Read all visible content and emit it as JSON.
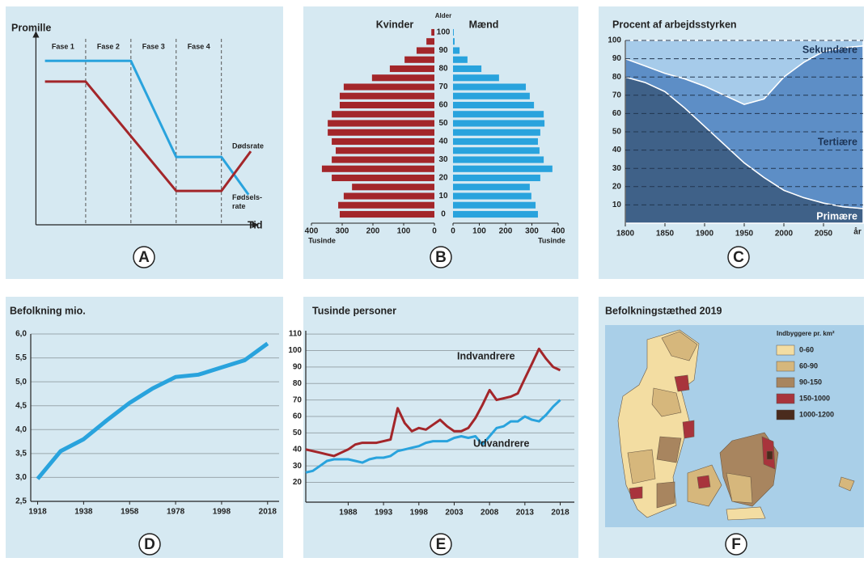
{
  "chart_data": [
    {
      "type": "line",
      "label": "A",
      "ylabel": "Promille",
      "xlabel": "Tid",
      "phases": [
        "Fase 1",
        "Fase 2",
        "Fase 3",
        "Fase 4"
      ],
      "xlim": [
        -0.1,
        4.9
      ],
      "ylim": [
        0,
        10
      ],
      "series": [
        {
          "name": "Fødsels-\nrate",
          "color": "#29a3dd",
          "x": [
            0.1,
            2,
            3,
            4,
            4.6
          ],
          "values": [
            8.7,
            8.7,
            3.6,
            3.6,
            1.6
          ]
        },
        {
          "name": "Dødsrate",
          "color": "#a3262a",
          "x": [
            0.1,
            1,
            3,
            4,
            4.65
          ],
          "values": [
            7.6,
            7.6,
            1.8,
            1.8,
            3.9
          ]
        }
      ]
    },
    {
      "type": "pyramid",
      "label": "B",
      "ylabel": "Alder",
      "xlabel": "Tusinde",
      "categories": [
        0,
        null,
        10,
        null,
        20,
        null,
        30,
        null,
        40,
        null,
        50,
        null,
        60,
        null,
        70,
        null,
        80,
        null,
        90,
        null,
        100
      ],
      "xlim": [
        0,
        400
      ],
      "xticks": [
        0,
        100,
        200,
        300,
        400
      ],
      "series": [
        {
          "name": "Kvinder",
          "color": "#a3262a",
          "values": [
            308,
            313,
            295,
            268,
            334,
            366,
            334,
            321,
            334,
            347,
            347,
            334,
            308,
            308,
            295,
            203,
            145,
            97,
            58,
            26,
            10
          ]
        },
        {
          "name": "Mænd",
          "color": "#29a3dd",
          "values": [
            323,
            314,
            298,
            292,
            332,
            378,
            345,
            329,
            323,
            332,
            348,
            345,
            308,
            292,
            277,
            175,
            108,
            55,
            25,
            6,
            3
          ]
        }
      ]
    },
    {
      "type": "area",
      "label": "C",
      "title": "Procent af arbejdsstyrken",
      "xlabel": "år",
      "x": [
        1800,
        1825,
        1850,
        1875,
        1900,
        1925,
        1950,
        1975,
        2000,
        2025,
        2050,
        2075,
        2100
      ],
      "xlim": [
        1800,
        2100
      ],
      "ylim": [
        0,
        100
      ],
      "xticks": [
        1800,
        1850,
        1900,
        1950,
        2000,
        2050
      ],
      "yticks": [
        10,
        20,
        30,
        40,
        50,
        60,
        70,
        80,
        90,
        100
      ],
      "grid": true,
      "series": [
        {
          "name": "Primære",
          "color": "#3f6188",
          "values": [
            80,
            77,
            72,
            63,
            53,
            43,
            33,
            25,
            18,
            14,
            11,
            9,
            8
          ]
        },
        {
          "name": "Tertiære",
          "color": "#5d8ec6",
          "values": [
            10,
            9,
            10,
            16,
            22,
            27,
            32,
            43,
            62,
            74,
            83,
            87,
            89
          ]
        },
        {
          "name": "Sekundære",
          "color": "#a6cbea",
          "values": [
            10,
            14,
            18,
            21,
            25,
            30,
            35,
            32,
            20,
            12,
            6,
            4,
            3
          ]
        }
      ]
    },
    {
      "type": "line",
      "label": "D",
      "title": "Befolkning mio.",
      "x": [
        1918,
        1928,
        1938,
        1948,
        1958,
        1968,
        1978,
        1988,
        1998,
        2008,
        2018
      ],
      "values": [
        2.97,
        3.55,
        3.8,
        4.19,
        4.56,
        4.86,
        5.1,
        5.15,
        5.3,
        5.45,
        5.8
      ],
      "color": "#29a3dd",
      "xlim": [
        1915,
        2023
      ],
      "ylim": [
        2.5,
        6.0
      ],
      "xticks": [
        1918,
        1938,
        1958,
        1978,
        1998,
        2018
      ],
      "yticks": [
        {
          "value": 2.5,
          "label": "2,5"
        },
        {
          "value": 3.0,
          "label": "3,0"
        },
        {
          "value": 3.5,
          "label": "3,5"
        },
        {
          "value": 4.0,
          "label": "4,0"
        },
        {
          "value": 4.5,
          "label": "4,5"
        },
        {
          "value": 5.0,
          "label": "5,0"
        },
        {
          "value": 5.5,
          "label": "5,5"
        },
        {
          "value": 6.0,
          "label": "6,0"
        }
      ],
      "grid": true
    },
    {
      "type": "line",
      "label": "E",
      "title": "Tusinde personer",
      "x": [
        1982,
        1983,
        1984,
        1985,
        1986,
        1987,
        1988,
        1989,
        1990,
        1991,
        1992,
        1993,
        1994,
        1995,
        1996,
        1997,
        1998,
        1999,
        2000,
        2001,
        2002,
        2003,
        2004,
        2005,
        2006,
        2007,
        2008,
        2009,
        2010,
        2011,
        2012,
        2013,
        2014,
        2015,
        2016,
        2017,
        2018
      ],
      "xlim": [
        1982,
        2020
      ],
      "ylim": [
        8,
        112
      ],
      "xticks": [
        1988,
        1993,
        1998,
        2003,
        2008,
        2013,
        2018
      ],
      "yticks": [
        20,
        30,
        40,
        50,
        60,
        70,
        80,
        90,
        100,
        110
      ],
      "grid": true,
      "series": [
        {
          "name": "Indvandrere",
          "color": "#a3262a",
          "values": [
            40,
            39,
            38,
            37,
            36,
            38,
            40,
            43,
            44,
            44,
            44,
            45,
            46,
            65,
            56,
            51,
            53,
            52,
            55,
            58,
            54,
            51,
            51,
            53,
            59,
            67,
            76,
            70,
            71,
            72,
            74,
            83,
            92,
            101,
            95,
            90,
            88
          ]
        },
        {
          "name": "Udvandrere",
          "color": "#29a3dd",
          "values": [
            26,
            27,
            30,
            33,
            34,
            34,
            34,
            33,
            32,
            34,
            35,
            35,
            36,
            39,
            40,
            41,
            42,
            44,
            45,
            45,
            45,
            47,
            48,
            47,
            48,
            43,
            48,
            53,
            54,
            57,
            57,
            60,
            58,
            57,
            61,
            66,
            70
          ]
        }
      ]
    },
    {
      "type": "map",
      "label": "F",
      "title": "Befolkningstæthed 2019",
      "legend_title": "Indbyggere pr. km²",
      "categories": [
        "0-60",
        "60-90",
        "90-150",
        "150-1000",
        "1000-1200"
      ],
      "colors": [
        "#f3dda2",
        "#d6b77c",
        "#a8855f",
        "#a8343c",
        "#4a2b1d"
      ]
    }
  ]
}
